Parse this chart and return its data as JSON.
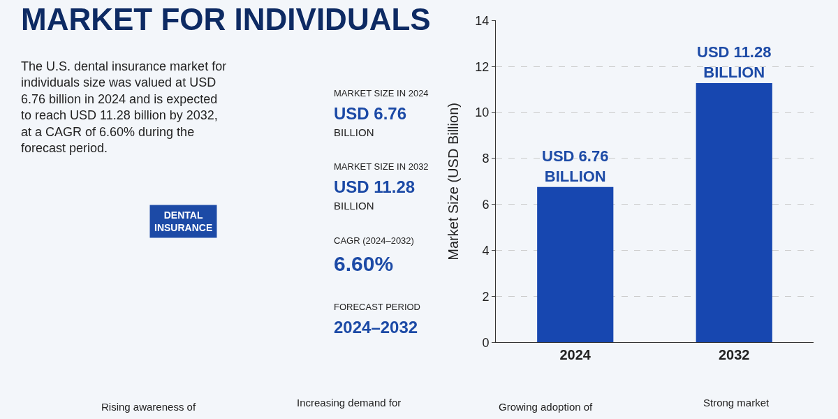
{
  "chart_data": [
    {
      "type": "other",
      "title": "MARKET FOR INDIVIDUALS",
      "annotations": [
        "The U.S. dental insurance market for individuals size was valued at USD 6.76 billion in 2024 and is expected to reach USD 11.28 billion by 2032, at a CAGR of 6.60% during the forecast period.",
        "MARKET SIZE IN 2024",
        "USD 6.76",
        "BILLION",
        "MARKET SIZE IN 2032",
        "USD 11.28",
        "BILLION",
        "CAGR (2024–2032)",
        "6.60%",
        "FORECAST PERIOD",
        "2024–2032",
        "DENTAL INSURANCE",
        "Rising awareness of",
        "Increasing demand for",
        "Growing adoption of",
        "Strong market"
      ]
    },
    {
      "type": "bar",
      "ylabel": "Market Size (USD Billion)",
      "categories": [
        "2024",
        "2032"
      ],
      "values": [
        6.76,
        11.28
      ],
      "color": "#1747b0",
      "value_labels": [
        "USD 6.76\nBILLION",
        "USD 11.28\nBILLION"
      ],
      "ylim": [
        0,
        14
      ],
      "yticks": [
        0,
        2,
        4,
        6,
        8,
        10,
        12,
        14
      ],
      "grid": "y"
    }
  ]
}
